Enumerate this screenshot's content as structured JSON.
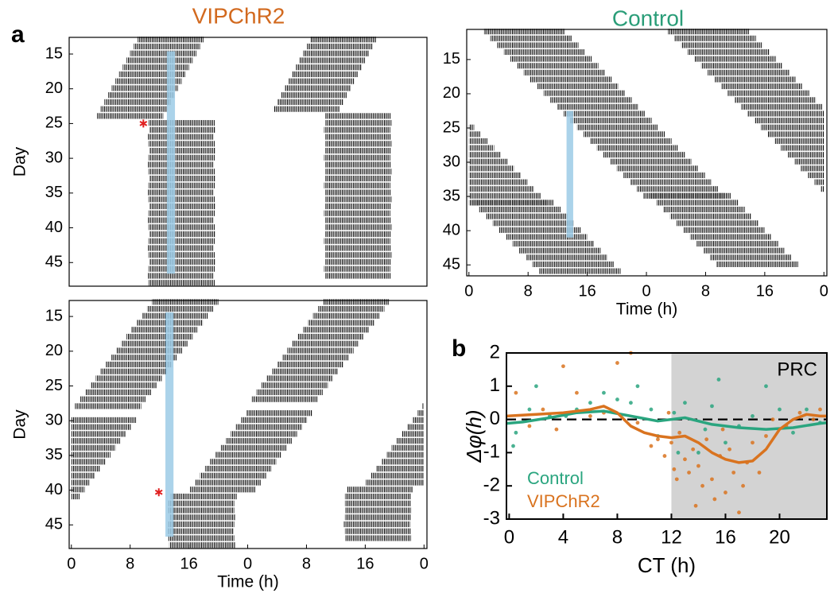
{
  "chart_data": [
    {
      "type": "actogram",
      "panel": "a",
      "title": "VIPChR2",
      "title_color": "#d2691e",
      "ylabel": "Day",
      "xlim": [
        -0.3,
        48.4
      ],
      "ylim": [
        12.6,
        48.4
      ],
      "yticks": [
        15,
        20,
        25,
        30,
        35,
        40,
        45
      ],
      "days": [
        13,
        14,
        15,
        16,
        17,
        18,
        19,
        20,
        21,
        22,
        23,
        24,
        25,
        26,
        27,
        28,
        29,
        30,
        31,
        32,
        33,
        34,
        35,
        36,
        37,
        38,
        39,
        40,
        41,
        42,
        43,
        44,
        45,
        46,
        47,
        48
      ],
      "onset": [
        9,
        8.5,
        8,
        7.5,
        7,
        6.5,
        6,
        5.5,
        5,
        4.5,
        4,
        3.5,
        10.5,
        10.6,
        10.4,
        10.5,
        10.6,
        10.5,
        10.4,
        10.5,
        10.6,
        10.5,
        10.4,
        10.5,
        10.6,
        10.5,
        10.4,
        10.5,
        10.6,
        10.5,
        10.4,
        10.5,
        10.6,
        10.5,
        10.4,
        10.5
      ],
      "alpha": 9,
      "light": {
        "x": [
          13,
          14.1
        ],
        "days": [
          14.6,
          46.6
        ]
      },
      "star": {
        "x": 9.8,
        "day": 25
      }
    },
    {
      "type": "actogram",
      "ylabel": "Day",
      "xlabel": "Time (h)",
      "xlim": [
        -0.3,
        48.4
      ],
      "ylim": [
        12.7,
        48.4
      ],
      "yticks": [
        15,
        20,
        25,
        30,
        35,
        40,
        45
      ],
      "xticks": [
        0,
        8,
        16,
        {
          "value": 24,
          "label": "0"
        },
        {
          "value": 32,
          "label": "8"
        },
        {
          "value": 40,
          "label": "16"
        },
        {
          "value": 48,
          "label": "0"
        }
      ],
      "days": [
        13,
        14,
        15,
        16,
        17,
        18,
        19,
        20,
        21,
        22,
        23,
        24,
        25,
        26,
        27,
        28,
        29,
        30,
        31,
        32,
        33,
        34,
        35,
        36,
        37,
        38,
        39,
        40,
        41,
        42,
        43,
        44,
        45,
        46,
        47,
        48
      ],
      "onset": [
        11,
        10.3,
        9.6,
        8.9,
        8.2,
        7.5,
        6.8,
        6.1,
        5.4,
        4.7,
        4.0,
        3.3,
        2.6,
        1.9,
        1.2,
        0.5,
        23.8,
        23.1,
        22.4,
        21.7,
        21.0,
        20.3,
        19.6,
        18.9,
        18.2,
        17.5,
        16.8,
        16.1,
        13.5,
        13.2,
        13.2,
        13.3,
        13.2,
        13.1,
        13.2,
        13.3
      ],
      "alpha": 9,
      "light": {
        "x": [
          12.8,
          13.9
        ],
        "days": [
          14.4,
          46.7
        ]
      },
      "star": {
        "x": 11.9,
        "day": 40.3
      }
    },
    {
      "type": "actogram",
      "title": "Control",
      "title_color": "#2a9d78",
      "xlabel": "Time (h)",
      "xlim": [
        -0.3,
        48.4
      ],
      "ylim": [
        10.6,
        46.6
      ],
      "yticks": [
        15,
        20,
        25,
        30,
        35,
        40,
        45
      ],
      "xticks": [
        0,
        8,
        16,
        {
          "value": 24,
          "label": "0"
        },
        {
          "value": 32,
          "label": "8"
        },
        {
          "value": 40,
          "label": "16"
        },
        {
          "value": 48,
          "label": "0"
        }
      ],
      "days": [
        11,
        12,
        13,
        14,
        15,
        16,
        17,
        18,
        19,
        20,
        21,
        22,
        23,
        24,
        25,
        26,
        27,
        28,
        29,
        30,
        31,
        32,
        33,
        34,
        35,
        36,
        37,
        38,
        39,
        40,
        41,
        42,
        43,
        44,
        45,
        46
      ],
      "onset": [
        2,
        2.9,
        3.8,
        4.7,
        5.6,
        6.5,
        7.4,
        8.3,
        9.2,
        10.1,
        11.0,
        11.9,
        12.8,
        13.7,
        14.6,
        15.5,
        16.4,
        17.3,
        18.2,
        19.1,
        20.0,
        20.9,
        21.8,
        22.7,
        23.6,
        0.5,
        1.4,
        2.3,
        3.2,
        4.1,
        5.0,
        5.9,
        6.8,
        7.7,
        8.6,
        9.5
      ],
      "alpha": 11,
      "light": {
        "x": [
          13.2,
          14.1
        ],
        "days": [
          22.5,
          41
        ]
      }
    },
    {
      "type": "scatter",
      "panel": "b",
      "label": "PRC",
      "xlabel": "CT (h)",
      "ylabel": "Δφ(h)",
      "xlim": [
        -0.2,
        23.5
      ],
      "ylim": [
        -3,
        2
      ],
      "xticks": [
        0,
        4,
        8,
        12,
        16,
        20
      ],
      "yticks": [
        2,
        1,
        0,
        -1,
        -2,
        -3
      ],
      "shade": [
        12,
        23.5
      ],
      "shade_color": "#d3d3d3",
      "zero_line": 0,
      "series": [
        {
          "name": "Control",
          "color": "#2aa57f",
          "x": [
            0.3,
            0.5,
            1.5,
            2,
            3,
            4.2,
            5,
            6,
            7,
            8,
            9,
            9.5,
            10.5,
            11,
            12.2,
            13,
            14,
            14.5,
            15,
            16,
            17,
            18,
            19,
            20,
            21,
            22,
            23,
            12.5,
            15.5
          ],
          "values": [
            -0.8,
            -0.4,
            0.3,
            1.0,
            0.1,
            0.1,
            0.3,
            0.5,
            0.8,
            0.6,
            0.5,
            1.0,
            0.3,
            -0.5,
            0.2,
            0.5,
            -1.0,
            -0.3,
            0.4,
            -0.7,
            -0.2,
            0.1,
            1.0,
            0.3,
            -0.4,
            0.3,
            -0.1,
            -1.0,
            1.2
          ]
        },
        {
          "name": "VIPChR2",
          "color": "#d9731f",
          "x": [
            0.5,
            1.5,
            2.5,
            3.5,
            4,
            5,
            6,
            7,
            8,
            9,
            9.5,
            10.5,
            11,
            11.5,
            12,
            12.2,
            12.4,
            12.6,
            13,
            13.3,
            13.6,
            14,
            14.3,
            14.6,
            15,
            15.2,
            15.6,
            16,
            16.3,
            16.6,
            17,
            17.3,
            17.6,
            18,
            18.5,
            19,
            19.5,
            20.5,
            21.5,
            22.5,
            23,
            11.8,
            13.8,
            15.8
          ],
          "values": [
            0.8,
            -0.2,
            0.3,
            -0.3,
            1.6,
            0.8,
            0.1,
            0.2,
            1.7,
            2.0,
            -0.1,
            -0.8,
            -0.6,
            -1.1,
            -0.7,
            -1.5,
            -1.8,
            -0.4,
            -1.2,
            -1.6,
            -0.9,
            -1.4,
            -2.0,
            -0.6,
            -1.8,
            -2.4,
            -1.1,
            -2.2,
            -0.9,
            -1.6,
            -2.8,
            -2.0,
            -1.3,
            -0.7,
            -1.6,
            -0.5,
            0.0,
            -0.2,
            0.2,
            0.0,
            0.3,
            0.2,
            -2.6,
            -0.3
          ]
        }
      ],
      "fits": [
        {
          "color": "#2aa57f",
          "x": [
            -0.2,
            1,
            3,
            5,
            7,
            9,
            11,
            13,
            15,
            17,
            19,
            21,
            23,
            23.5
          ],
          "values": [
            -0.12,
            -0.08,
            0.05,
            0.2,
            0.25,
            0.1,
            -0.05,
            0.05,
            -0.15,
            -0.25,
            -0.3,
            -0.25,
            -0.12,
            -0.1
          ]
        },
        {
          "color": "#d9731f",
          "x": [
            -0.2,
            2,
            4,
            6,
            7,
            8,
            9,
            10,
            11,
            12,
            13,
            14,
            15,
            16,
            17,
            18,
            19,
            20,
            21,
            22,
            23,
            23.5
          ],
          "values": [
            0.1,
            0.15,
            0.2,
            0.3,
            0.4,
            0.2,
            -0.2,
            -0.4,
            -0.5,
            -0.55,
            -0.5,
            -0.7,
            -1.0,
            -1.2,
            -1.3,
            -1.25,
            -0.9,
            -0.3,
            0.0,
            0.15,
            0.1,
            0.1
          ]
        }
      ]
    }
  ]
}
